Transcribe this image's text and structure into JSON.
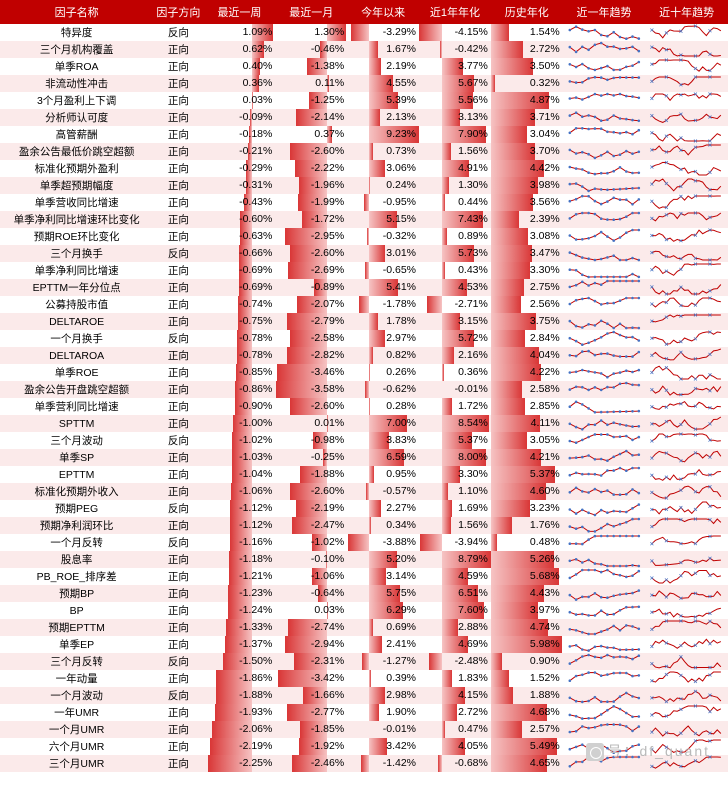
{
  "colors": {
    "header_bg": "#c00000",
    "header_fg": "#ffffff",
    "row_even": "#fbeaea",
    "row_odd": "#ffffff",
    "bar_light": "#f6c4c4",
    "bar_dark": "#d93636",
    "spark_line": "#c00000",
    "spark_dot": "#4472c4"
  },
  "columns": [
    {
      "key": "name",
      "label": "因子名称",
      "type": "text",
      "width": 128
    },
    {
      "key": "dir",
      "label": "因子方向",
      "type": "text",
      "width": 42
    },
    {
      "key": "w1",
      "label": "最近一周",
      "type": "bar",
      "width": 60,
      "min": -2.5,
      "max": 1.2
    },
    {
      "key": "m1",
      "label": "最近一月",
      "type": "bar",
      "width": 60,
      "min": -3.6,
      "max": 1.4
    },
    {
      "key": "ytd",
      "label": "今年以来",
      "type": "bar",
      "width": 60,
      "min": -4.0,
      "max": 9.3
    },
    {
      "key": "y1",
      "label": "近1年年化",
      "type": "bar",
      "width": 60,
      "min": -4.2,
      "max": 8.8
    },
    {
      "key": "hist",
      "label": "历史年化",
      "type": "bar",
      "width": 60,
      "min": 0,
      "max": 6.0
    },
    {
      "key": "t1",
      "label": "近一年趋势",
      "type": "spark",
      "width": 69
    },
    {
      "key": "t10",
      "label": "近十年趋势",
      "type": "spark",
      "width": 69
    }
  ],
  "spark": {
    "width": 69,
    "height": 17,
    "points1": 12,
    "points10": 20
  },
  "rows": [
    {
      "name": "特异度",
      "dir": "反向",
      "w1": 1.09,
      "m1": 1.3,
      "ytd": -3.29,
      "y1": -4.15,
      "hist": 1.54
    },
    {
      "name": "三个月机构覆盖",
      "dir": "正向",
      "w1": 0.62,
      "m1": -0.46,
      "ytd": 1.67,
      "y1": -0.42,
      "hist": 2.72
    },
    {
      "name": "单季ROA",
      "dir": "正向",
      "w1": 0.4,
      "m1": -1.38,
      "ytd": 2.19,
      "y1": 3.77,
      "hist": 3.5
    },
    {
      "name": "非流动性冲击",
      "dir": "正向",
      "w1": 0.36,
      "m1": 0.11,
      "ytd": 4.55,
      "y1": 5.67,
      "hist": 0.32
    },
    {
      "name": "3个月盈利上下调",
      "dir": "正向",
      "w1": 0.03,
      "m1": -1.25,
      "ytd": 5.39,
      "y1": 5.56,
      "hist": 4.87
    },
    {
      "name": "分析师认可度",
      "dir": "正向",
      "w1": -0.09,
      "m1": -2.14,
      "ytd": 2.13,
      "y1": 3.13,
      "hist": 3.71
    },
    {
      "name": "高管薪酬",
      "dir": "正向",
      "w1": -0.18,
      "m1": 0.37,
      "ytd": 9.23,
      "y1": 7.9,
      "hist": 3.04
    },
    {
      "name": "盈余公告最低价跳空超额",
      "dir": "正向",
      "w1": -0.21,
      "m1": -2.6,
      "ytd": 0.73,
      "y1": 1.56,
      "hist": 3.7
    },
    {
      "name": "标准化预期外盈利",
      "dir": "正向",
      "w1": -0.29,
      "m1": -2.22,
      "ytd": 3.06,
      "y1": 4.91,
      "hist": 4.42
    },
    {
      "name": "单季超预期幅度",
      "dir": "正向",
      "w1": -0.31,
      "m1": -1.96,
      "ytd": 0.24,
      "y1": 1.3,
      "hist": 3.98
    },
    {
      "name": "单季营收同比增速",
      "dir": "正向",
      "w1": -0.43,
      "m1": -1.99,
      "ytd": -0.95,
      "y1": 0.44,
      "hist": 3.56
    },
    {
      "name": "单季净利同比增速环比变化",
      "dir": "正向",
      "w1": -0.6,
      "m1": -1.72,
      "ytd": 5.15,
      "y1": 7.43,
      "hist": 2.39
    },
    {
      "name": "预期ROE环比变化",
      "dir": "正向",
      "w1": -0.63,
      "m1": -2.95,
      "ytd": -0.32,
      "y1": 0.89,
      "hist": 3.08
    },
    {
      "name": "三个月换手",
      "dir": "反向",
      "w1": -0.66,
      "m1": -2.6,
      "ytd": 3.01,
      "y1": 5.73,
      "hist": 3.47
    },
    {
      "name": "单季净利同比增速",
      "dir": "正向",
      "w1": -0.69,
      "m1": -2.69,
      "ytd": -0.65,
      "y1": 0.43,
      "hist": 3.3
    },
    {
      "name": "EPTTM一年分位点",
      "dir": "正向",
      "w1": -0.69,
      "m1": -0.89,
      "ytd": 5.41,
      "y1": 4.53,
      "hist": 2.75
    },
    {
      "name": "公募持股市值",
      "dir": "正向",
      "w1": -0.74,
      "m1": -2.07,
      "ytd": -1.78,
      "y1": -2.71,
      "hist": 2.56
    },
    {
      "name": "DELTAROE",
      "dir": "正向",
      "w1": -0.75,
      "m1": -2.79,
      "ytd": 1.78,
      "y1": 3.15,
      "hist": 3.75
    },
    {
      "name": "一个月换手",
      "dir": "反向",
      "w1": -0.78,
      "m1": -2.58,
      "ytd": 2.97,
      "y1": 5.72,
      "hist": 2.84
    },
    {
      "name": "DELTAROA",
      "dir": "正向",
      "w1": -0.78,
      "m1": -2.82,
      "ytd": 0.82,
      "y1": 2.16,
      "hist": 4.04
    },
    {
      "name": "单季ROE",
      "dir": "正向",
      "w1": -0.85,
      "m1": -3.46,
      "ytd": 0.26,
      "y1": 0.36,
      "hist": 4.22
    },
    {
      "name": "盈余公告开盘跳空超额",
      "dir": "正向",
      "w1": -0.86,
      "m1": -3.58,
      "ytd": -0.62,
      "y1": -0.01,
      "hist": 2.58
    },
    {
      "name": "单季营利同比增速",
      "dir": "正向",
      "w1": -0.9,
      "m1": -2.6,
      "ytd": 0.28,
      "y1": 1.72,
      "hist": 2.85
    },
    {
      "name": "SPTTM",
      "dir": "正向",
      "w1": -1.0,
      "m1": 0.01,
      "ytd": 7.0,
      "y1": 8.54,
      "hist": 4.11
    },
    {
      "name": "三个月波动",
      "dir": "反向",
      "w1": -1.02,
      "m1": -0.98,
      "ytd": 3.83,
      "y1": 5.37,
      "hist": 3.05
    },
    {
      "name": "单季SP",
      "dir": "正向",
      "w1": -1.03,
      "m1": -0.25,
      "ytd": 6.59,
      "y1": 8.0,
      "hist": 4.21
    },
    {
      "name": "EPTTM",
      "dir": "正向",
      "w1": -1.04,
      "m1": -1.88,
      "ytd": 0.95,
      "y1": 3.3,
      "hist": 5.37
    },
    {
      "name": "标准化预期外收入",
      "dir": "正向",
      "w1": -1.06,
      "m1": -2.6,
      "ytd": -0.57,
      "y1": 1.1,
      "hist": 4.6
    },
    {
      "name": "预期PEG",
      "dir": "反向",
      "w1": -1.12,
      "m1": -2.19,
      "ytd": 2.27,
      "y1": 1.69,
      "hist": 3.23
    },
    {
      "name": "预期净利润环比",
      "dir": "正向",
      "w1": -1.12,
      "m1": -2.47,
      "ytd": 0.34,
      "y1": 1.56,
      "hist": 1.76
    },
    {
      "name": "一个月反转",
      "dir": "反向",
      "w1": -1.16,
      "m1": -1.02,
      "ytd": -3.88,
      "y1": -3.94,
      "hist": 0.48
    },
    {
      "name": "股息率",
      "dir": "正向",
      "w1": -1.18,
      "m1": -0.1,
      "ytd": 5.2,
      "y1": 8.79,
      "hist": 5.26
    },
    {
      "name": "PB_ROE_排序差",
      "dir": "正向",
      "w1": -1.21,
      "m1": -1.06,
      "ytd": 3.14,
      "y1": 4.59,
      "hist": 5.68
    },
    {
      "name": "预期BP",
      "dir": "正向",
      "w1": -1.23,
      "m1": -0.64,
      "ytd": 5.75,
      "y1": 6.51,
      "hist": 4.43
    },
    {
      "name": "BP",
      "dir": "正向",
      "w1": -1.24,
      "m1": 0.03,
      "ytd": 6.29,
      "y1": 7.6,
      "hist": 3.97
    },
    {
      "name": "预期EPTTM",
      "dir": "正向",
      "w1": -1.33,
      "m1": -2.74,
      "ytd": 0.69,
      "y1": 2.88,
      "hist": 4.74
    },
    {
      "name": "单季EP",
      "dir": "正向",
      "w1": -1.37,
      "m1": -2.94,
      "ytd": 2.41,
      "y1": 4.69,
      "hist": 5.98
    },
    {
      "name": "三个月反转",
      "dir": "反向",
      "w1": -1.5,
      "m1": -2.31,
      "ytd": -1.27,
      "y1": -2.48,
      "hist": 0.9
    },
    {
      "name": "一年动量",
      "dir": "正向",
      "w1": -1.86,
      "m1": -3.42,
      "ytd": 0.39,
      "y1": 1.83,
      "hist": 1.52
    },
    {
      "name": "一个月波动",
      "dir": "反向",
      "w1": -1.88,
      "m1": -1.66,
      "ytd": 2.98,
      "y1": 4.15,
      "hist": 1.88
    },
    {
      "name": "一年UMR",
      "dir": "正向",
      "w1": -1.93,
      "m1": -2.77,
      "ytd": 1.9,
      "y1": 2.72,
      "hist": 4.68
    },
    {
      "name": "一个月UMR",
      "dir": "正向",
      "w1": -2.06,
      "m1": -1.85,
      "ytd": -0.01,
      "y1": 0.47,
      "hist": 2.57
    },
    {
      "name": "六个月UMR",
      "dir": "正向",
      "w1": -2.19,
      "m1": -1.92,
      "ytd": 3.42,
      "y1": 4.05,
      "hist": 5.49
    },
    {
      "name": "三个月UMR",
      "dir": "正向",
      "w1": -2.25,
      "m1": -2.46,
      "ytd": -1.42,
      "y1": -0.68,
      "hist": 4.65
    }
  ],
  "watermark": {
    "text": "号：df_quant"
  }
}
